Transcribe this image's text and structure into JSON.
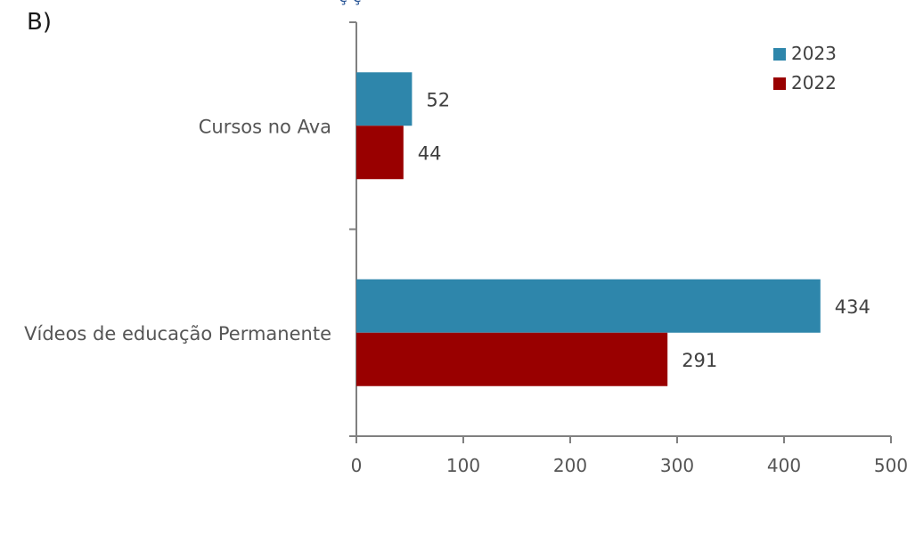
{
  "panel_label": "B)",
  "top_clip": "ç               ç",
  "chart_data": {
    "type": "bar",
    "orientation": "horizontal",
    "categories": [
      "Cursos no Ava",
      "Vídeos de educação Permanente"
    ],
    "series": [
      {
        "name": "2023",
        "values": [
          52,
          434
        ],
        "color": "#2e86ab"
      },
      {
        "name": "2022",
        "values": [
          44,
          291
        ],
        "color": "#990000"
      }
    ],
    "xlim": [
      0,
      500
    ],
    "xticks": [
      "0",
      "100",
      "200",
      "300",
      "400",
      "500"
    ],
    "data_labels": [
      [
        "52",
        "434"
      ],
      [
        "44",
        "291"
      ]
    ],
    "legend_position": "top-right",
    "grid": false
  }
}
